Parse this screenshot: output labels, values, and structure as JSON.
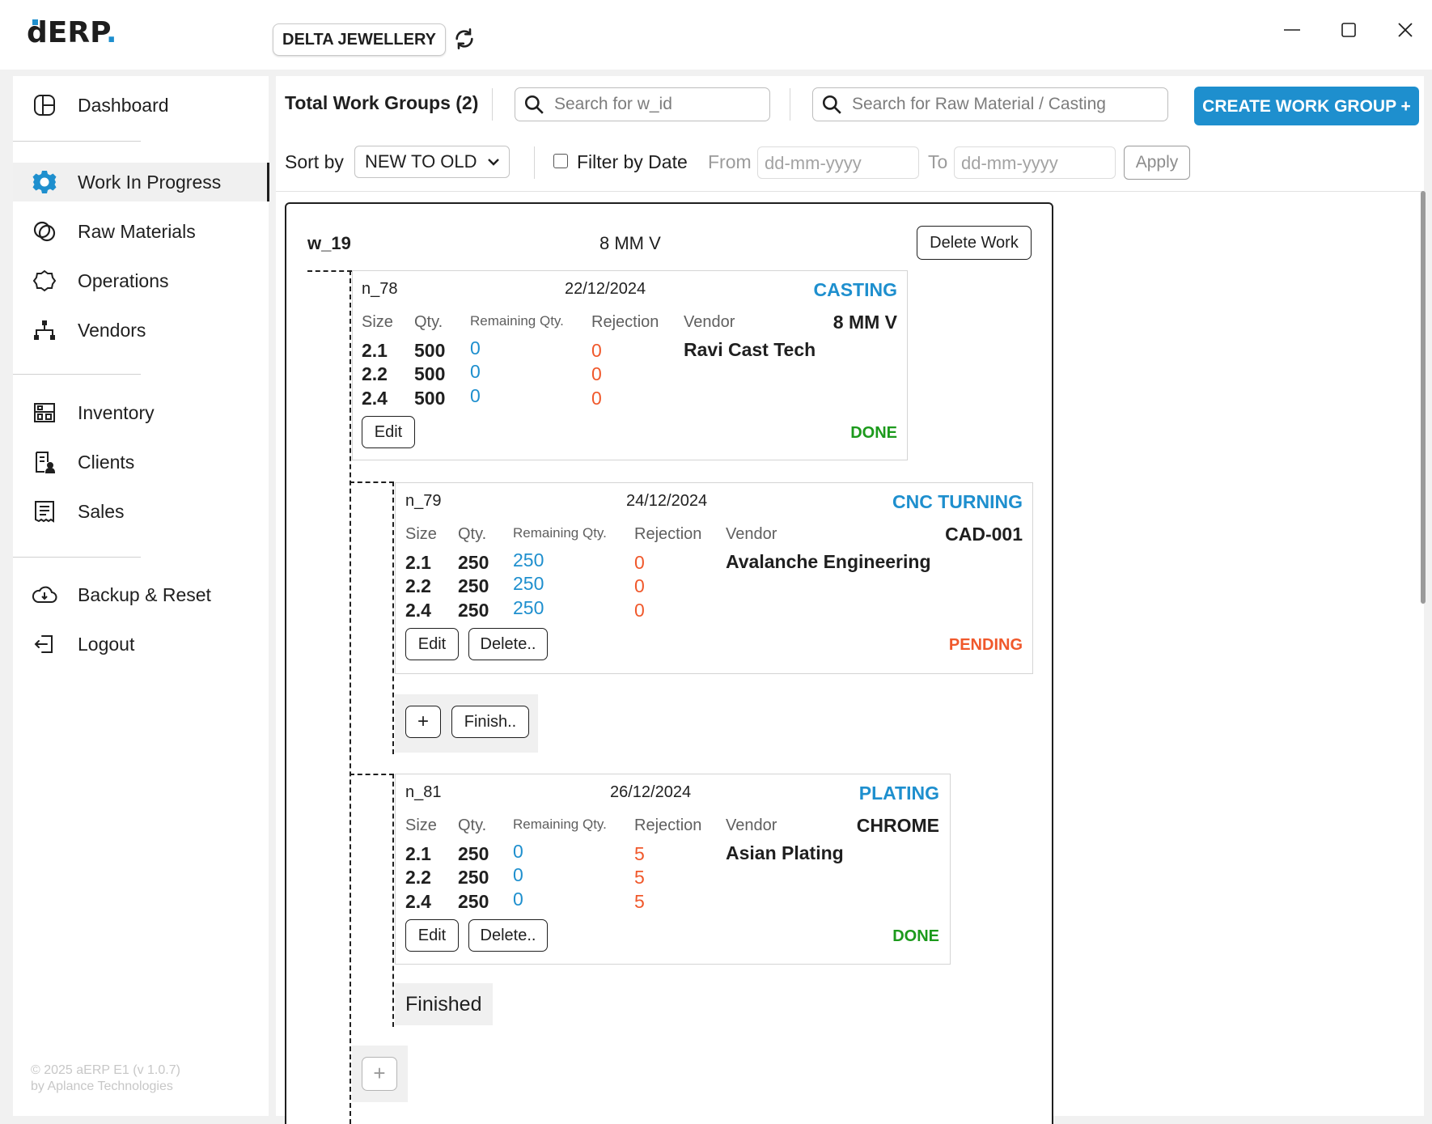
{
  "app": {
    "logo_text": "ERP",
    "logo_prefix": "d",
    "logo_suffix": ".",
    "company": "DELTA JEWELLERY"
  },
  "sidebar": {
    "items": [
      {
        "label": "Dashboard",
        "icon": "dashboard-icon"
      },
      {
        "label": "Work In Progress",
        "icon": "gear-icon",
        "active": true
      },
      {
        "label": "Raw Materials",
        "icon": "raw-materials-icon"
      },
      {
        "label": "Operations",
        "icon": "operations-icon"
      },
      {
        "label": "Vendors",
        "icon": "vendors-icon"
      },
      {
        "label": "Inventory",
        "icon": "inventory-icon"
      },
      {
        "label": "Clients",
        "icon": "clients-icon"
      },
      {
        "label": "Sales",
        "icon": "sales-icon"
      },
      {
        "label": "Backup & Reset",
        "icon": "cloud-icon"
      },
      {
        "label": "Logout",
        "icon": "logout-icon"
      }
    ],
    "copyright_line1": "© 2025 aERP E1 (v 1.0.7)",
    "copyright_line2": "by Aplance Technologies"
  },
  "toolbar": {
    "total_groups": "Total Work Groups (2)",
    "search_wid_placeholder": "Search for w_id",
    "search_raw_placeholder": "Search for Raw Material / Casting",
    "create_label": "CREATE WORK GROUP +",
    "sort_label": "Sort by",
    "sort_value": "NEW TO OLD",
    "filter_label": "Filter by Date",
    "from_label": "From",
    "to_label": "To",
    "date_placeholder": "dd-mm-yyyy",
    "apply_label": "Apply"
  },
  "work_group": {
    "id": "w_19",
    "name": "8 MM V",
    "delete_label": "Delete Work",
    "headers": {
      "size": "Size",
      "qty": "Qty.",
      "remaining": "Remaining Qty.",
      "rejection": "Rejection",
      "vendor": "Vendor"
    },
    "nodes": [
      {
        "id": "n_78",
        "date": "22/12/2024",
        "operation": "CASTING",
        "spec": "8 MM V",
        "vendor": "Ravi Cast Tech",
        "rows": [
          {
            "size": "2.1",
            "qty": "500",
            "remaining": "0",
            "rejection": "0"
          },
          {
            "size": "2.2",
            "qty": "500",
            "remaining": "0",
            "rejection": "0"
          },
          {
            "size": "2.4",
            "qty": "500",
            "remaining": "0",
            "rejection": "0"
          }
        ],
        "edit_label": "Edit",
        "status": "DONE"
      },
      {
        "id": "n_79",
        "date": "24/12/2024",
        "operation": "CNC TURNING",
        "spec": "CAD-001",
        "vendor": "Avalanche Engineering",
        "rows": [
          {
            "size": "2.1",
            "qty": "250",
            "remaining": "250",
            "rejection": "0"
          },
          {
            "size": "2.2",
            "qty": "250",
            "remaining": "250",
            "rejection": "0"
          },
          {
            "size": "2.4",
            "qty": "250",
            "remaining": "250",
            "rejection": "0"
          }
        ],
        "edit_label": "Edit",
        "delete_label": "Delete..",
        "status": "PENDING"
      },
      {
        "id": "n_81",
        "date": "26/12/2024",
        "operation": "PLATING",
        "spec": "CHROME",
        "vendor": "Asian Plating",
        "rows": [
          {
            "size": "2.1",
            "qty": "250",
            "remaining": "0",
            "rejection": "5"
          },
          {
            "size": "2.2",
            "qty": "250",
            "remaining": "0",
            "rejection": "5"
          },
          {
            "size": "2.4",
            "qty": "250",
            "remaining": "0",
            "rejection": "5"
          }
        ],
        "edit_label": "Edit",
        "delete_label": "Delete..",
        "status": "DONE"
      }
    ],
    "branch_plus": "+",
    "finish_label": "Finish..",
    "finished_label": "Finished",
    "root_plus": "+"
  },
  "colors": {
    "accent": "#1e8fce",
    "done": "#1c9a1c",
    "pending": "#f0582b",
    "rejection": "#f0582b"
  }
}
